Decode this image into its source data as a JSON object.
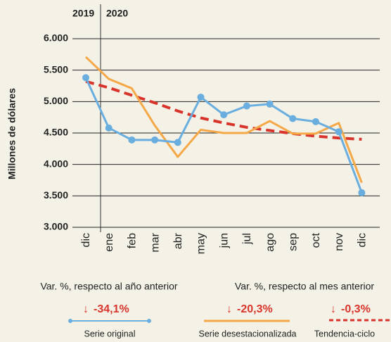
{
  "chart_data": {
    "type": "line",
    "year_labels": [
      "2019",
      "2020"
    ],
    "ylabel": "Millones de dólares",
    "categories": [
      "dic",
      "ene",
      "feb",
      "mar",
      "abr",
      "may",
      "jun",
      "jul",
      "ago",
      "sep",
      "oct",
      "nov",
      "dic"
    ],
    "ylim": [
      3000,
      6000
    ],
    "yticks": [
      {
        "value": 3000,
        "label": "3.000"
      },
      {
        "value": 3500,
        "label": "3.500"
      },
      {
        "value": 4000,
        "label": "4.000"
      },
      {
        "value": 4500,
        "label": "4.500"
      },
      {
        "value": 5000,
        "label": "5.000"
      },
      {
        "value": 5500,
        "label": "5.500"
      },
      {
        "value": 6000,
        "label": "6.000"
      }
    ],
    "grid": true,
    "series": [
      {
        "name": "Serie original",
        "color": "#6aaee0",
        "style": "markers",
        "values": [
          5380,
          4580,
          4390,
          4390,
          4350,
          5070,
          4790,
          4930,
          4960,
          4730,
          4680,
          4520,
          3550
        ]
      },
      {
        "name": "Serie desestacionalizada",
        "color": "#f5a847",
        "style": "solid",
        "values": [
          5710,
          5360,
          5210,
          4620,
          4120,
          4550,
          4500,
          4500,
          4690,
          4490,
          4490,
          4660,
          3710
        ]
      },
      {
        "name": "Tendencia-ciclo",
        "color": "#d9342b",
        "style": "dashed",
        "values": [
          5320,
          5220,
          5100,
          4980,
          4850,
          4740,
          4660,
          4590,
          4540,
          4490,
          4450,
          4420,
          4400
        ]
      }
    ],
    "summary": {
      "headings": [
        "Var. %, respecto al año anterior",
        "Var. %, respecto al mes anterior"
      ],
      "changes": [
        "-34,1%",
        "-20,3%",
        "-0,3%"
      ]
    }
  }
}
